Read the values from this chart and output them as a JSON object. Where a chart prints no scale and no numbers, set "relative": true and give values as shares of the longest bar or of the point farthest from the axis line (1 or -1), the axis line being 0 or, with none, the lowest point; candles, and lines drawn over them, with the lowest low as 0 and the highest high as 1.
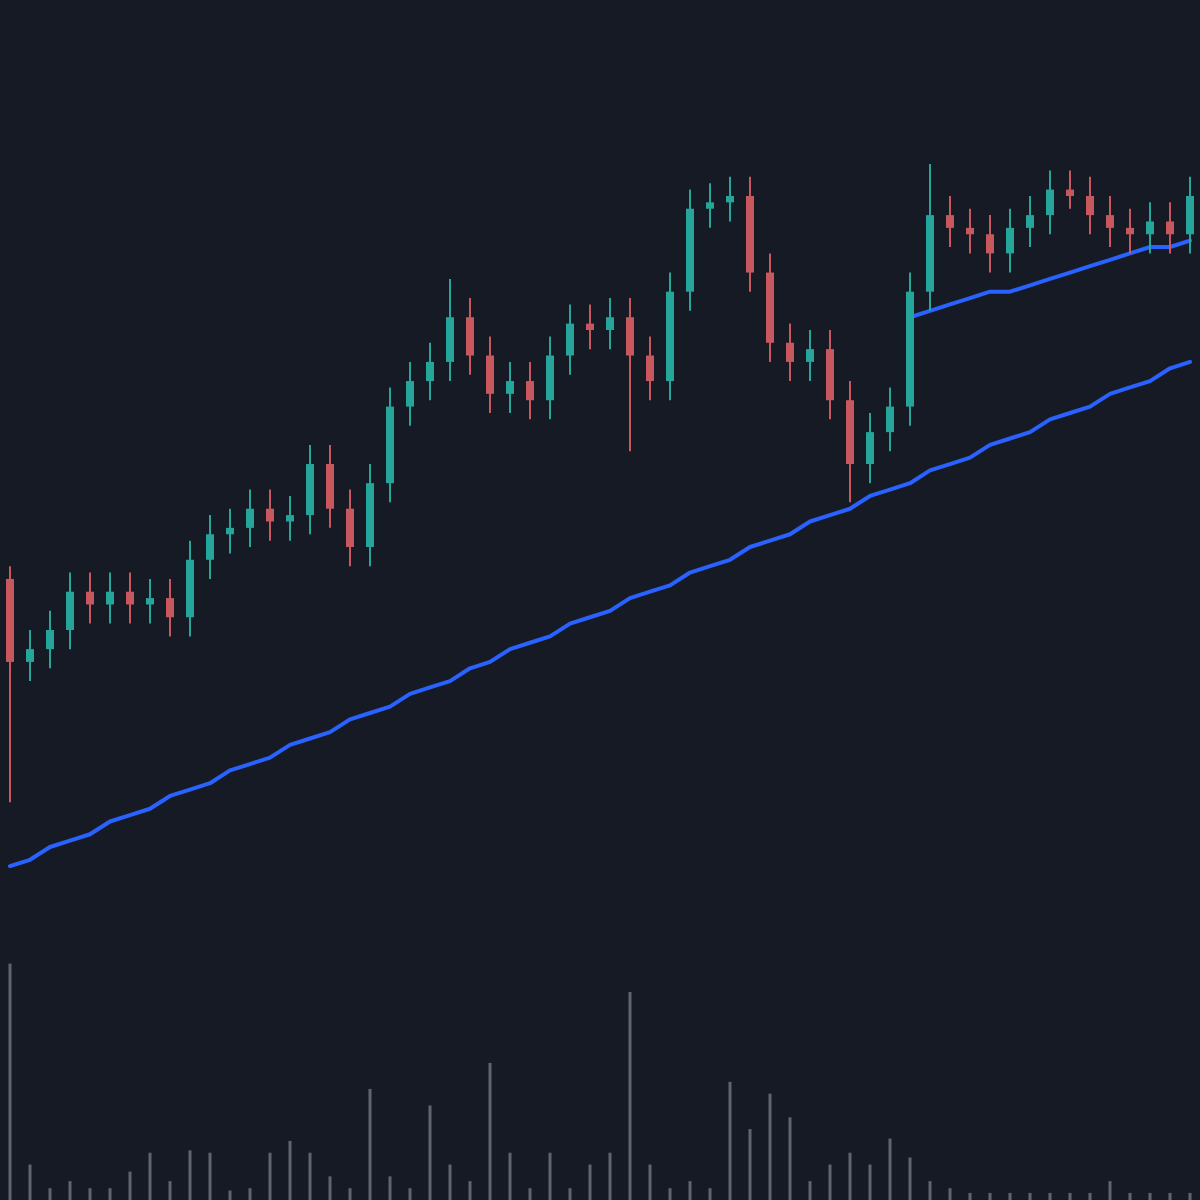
{
  "chart_data": [
    {
      "type": "candlestick",
      "relative": true,
      "categories": [
        null,
        null,
        null,
        null,
        null,
        null,
        null,
        null,
        null,
        null,
        null,
        null,
        null,
        null,
        null,
        null,
        null,
        null,
        null,
        null,
        null,
        null,
        null,
        null,
        null,
        null,
        null,
        null,
        null,
        null,
        null,
        null,
        null,
        null,
        null,
        null,
        null,
        null,
        null,
        null,
        null,
        null,
        null,
        null,
        null,
        null,
        null,
        null,
        null,
        null,
        null,
        null,
        null,
        null,
        null,
        null,
        null,
        null,
        null,
        null
      ],
      "ohlc": [
        [
          0.35,
          0.37,
          0,
          0.22
        ],
        [
          0.22,
          0.27,
          0.19,
          0.24
        ],
        [
          0.24,
          0.3,
          0.21,
          0.27
        ],
        [
          0.27,
          0.36,
          0.24,
          0.33
        ],
        [
          0.33,
          0.36,
          0.28,
          0.31
        ],
        [
          0.31,
          0.36,
          0.28,
          0.33
        ],
        [
          0.33,
          0.36,
          0.28,
          0.31
        ],
        [
          0.31,
          0.35,
          0.28,
          0.32
        ],
        [
          0.32,
          0.35,
          0.26,
          0.29
        ],
        [
          0.29,
          0.41,
          0.26,
          0.38
        ],
        [
          0.38,
          0.45,
          0.35,
          0.42
        ],
        [
          0.42,
          0.46,
          0.39,
          0.43
        ],
        [
          0.43,
          0.49,
          0.4,
          0.46
        ],
        [
          0.46,
          0.49,
          0.41,
          0.44
        ],
        [
          0.44,
          0.48,
          0.41,
          0.45
        ],
        [
          0.45,
          0.56,
          0.42,
          0.53
        ],
        [
          0.53,
          0.56,
          0.43,
          0.46
        ],
        [
          0.46,
          0.49,
          0.37,
          0.4
        ],
        [
          0.4,
          0.53,
          0.37,
          0.5
        ],
        [
          0.5,
          0.65,
          0.47,
          0.62
        ],
        [
          0.62,
          0.69,
          0.59,
          0.66
        ],
        [
          0.66,
          0.72,
          0.63,
          0.69
        ],
        [
          0.69,
          0.82,
          0.66,
          0.76
        ],
        [
          0.76,
          0.79,
          0.67,
          0.7
        ],
        [
          0.7,
          0.73,
          0.61,
          0.64
        ],
        [
          0.64,
          0.69,
          0.61,
          0.66
        ],
        [
          0.66,
          0.69,
          0.6,
          0.63
        ],
        [
          0.63,
          0.73,
          0.6,
          0.7
        ],
        [
          0.7,
          0.78,
          0.67,
          0.75
        ],
        [
          0.75,
          0.78,
          0.71,
          0.74
        ],
        [
          0.74,
          0.79,
          0.71,
          0.76
        ],
        [
          0.76,
          0.79,
          0.55,
          0.7
        ],
        [
          0.7,
          0.73,
          0.63,
          0.66
        ],
        [
          0.66,
          0.83,
          0.63,
          0.8
        ],
        [
          0.8,
          0.96,
          0.77,
          0.93
        ],
        [
          0.93,
          0.97,
          0.9,
          0.94
        ],
        [
          0.94,
          0.98,
          0.91,
          0.95
        ],
        [
          0.95,
          0.98,
          0.8,
          0.83
        ],
        [
          0.83,
          0.86,
          0.69,
          0.72
        ],
        [
          0.72,
          0.75,
          0.66,
          0.69
        ],
        [
          0.69,
          0.74,
          0.66,
          0.71
        ],
        [
          0.71,
          0.74,
          0.6,
          0.63
        ],
        [
          0.63,
          0.66,
          0.47,
          0.53
        ],
        [
          0.53,
          0.61,
          0.5,
          0.58
        ],
        [
          0.58,
          0.65,
          0.55,
          0.62
        ],
        [
          0.62,
          0.83,
          0.59,
          0.8
        ],
        [
          0.8,
          1,
          0.77,
          0.92
        ],
        [
          0.92,
          0.95,
          0.87,
          0.9
        ],
        [
          0.9,
          0.93,
          0.86,
          0.89
        ],
        [
          0.89,
          0.92,
          0.83,
          0.86
        ],
        [
          0.86,
          0.93,
          0.83,
          0.9
        ],
        [
          0.9,
          0.95,
          0.87,
          0.92
        ],
        [
          0.92,
          0.99,
          0.89,
          0.96
        ],
        [
          0.96,
          0.99,
          0.93,
          0.95
        ],
        [
          0.95,
          0.98,
          0.89,
          0.92
        ],
        [
          0.92,
          0.95,
          0.87,
          0.9
        ],
        [
          0.9,
          0.93,
          0.86,
          0.89
        ],
        [
          0.89,
          0.94,
          0.86,
          0.91
        ],
        [
          0.91,
          0.94,
          0.86,
          0.89
        ],
        [
          0.89,
          0.98,
          0.86,
          0.95
        ]
      ],
      "series": [
        {
          "type": "line",
          "color": "#2962ff",
          "values": [
            -0.1,
            -0.09,
            -0.07,
            -0.06,
            -0.05,
            -0.03,
            -0.02,
            -0.01,
            0.01,
            0.02,
            0.03,
            0.05,
            0.06,
            0.07,
            0.09,
            0.1,
            0.11,
            0.13,
            0.14,
            0.15,
            0.17,
            0.18,
            0.19,
            0.21,
            0.22,
            0.24,
            0.25,
            0.26,
            0.28,
            0.29,
            0.3,
            0.32,
            0.33,
            0.34,
            0.36,
            0.37,
            0.38,
            0.4,
            0.41,
            0.42,
            0.44,
            0.45,
            0.46,
            0.48,
            0.49,
            0.5,
            0.52,
            0.53,
            0.54,
            0.56,
            0.57,
            0.58,
            0.6,
            0.61,
            0.62,
            0.64,
            0.65,
            0.66,
            0.68,
            0.69
          ]
        },
        {
          "type": "line",
          "color": "#2962ff",
          "values": [
            null,
            null,
            null,
            null,
            null,
            null,
            null,
            null,
            null,
            null,
            null,
            null,
            null,
            null,
            null,
            null,
            null,
            null,
            null,
            null,
            null,
            null,
            null,
            null,
            null,
            null,
            null,
            null,
            null,
            null,
            null,
            null,
            null,
            null,
            null,
            null,
            null,
            null,
            null,
            null,
            null,
            null,
            null,
            null,
            null,
            0.76,
            0.77,
            0.78,
            0.79,
            0.8,
            0.8,
            0.81,
            0.82,
            0.83,
            0.84,
            0.85,
            0.86,
            0.87,
            0.87,
            0.88
          ]
        }
      ]
    },
    {
      "type": "bar",
      "relative": true,
      "color": "#5d6670",
      "categories": [
        null,
        null,
        null,
        null,
        null,
        null,
        null,
        null,
        null,
        null,
        null,
        null,
        null,
        null,
        null,
        null,
        null,
        null,
        null,
        null,
        null,
        null,
        null,
        null,
        null,
        null,
        null,
        null,
        null,
        null,
        null,
        null,
        null,
        null,
        null,
        null,
        null,
        null,
        null,
        null,
        null,
        null,
        null,
        null,
        null,
        null,
        null,
        null,
        null,
        null,
        null,
        null,
        null,
        null,
        null,
        null,
        null,
        null,
        null,
        null
      ],
      "values": [
        1,
        0.15,
        0.05,
        0.08,
        0.05,
        0.05,
        0.12,
        0.2,
        0.08,
        0.21,
        0.2,
        0.04,
        0.05,
        0.2,
        0.25,
        0.2,
        0.1,
        0.05,
        0.47,
        0.1,
        0.05,
        0.4,
        0.15,
        0.08,
        0.58,
        0.2,
        0.05,
        0.2,
        0.05,
        0.15,
        0.2,
        0.88,
        0.15,
        0.05,
        0.08,
        0.05,
        0.5,
        0.3,
        0.45,
        0.35,
        0.08,
        0.15,
        0.2,
        0.15,
        0.26,
        0.18,
        0.08,
        0.05,
        0.03,
        0.03,
        0.03,
        0.03,
        0.03,
        0.03,
        0.03,
        0.08,
        0.03,
        0.03,
        0.03,
        0.03
      ]
    }
  ]
}
